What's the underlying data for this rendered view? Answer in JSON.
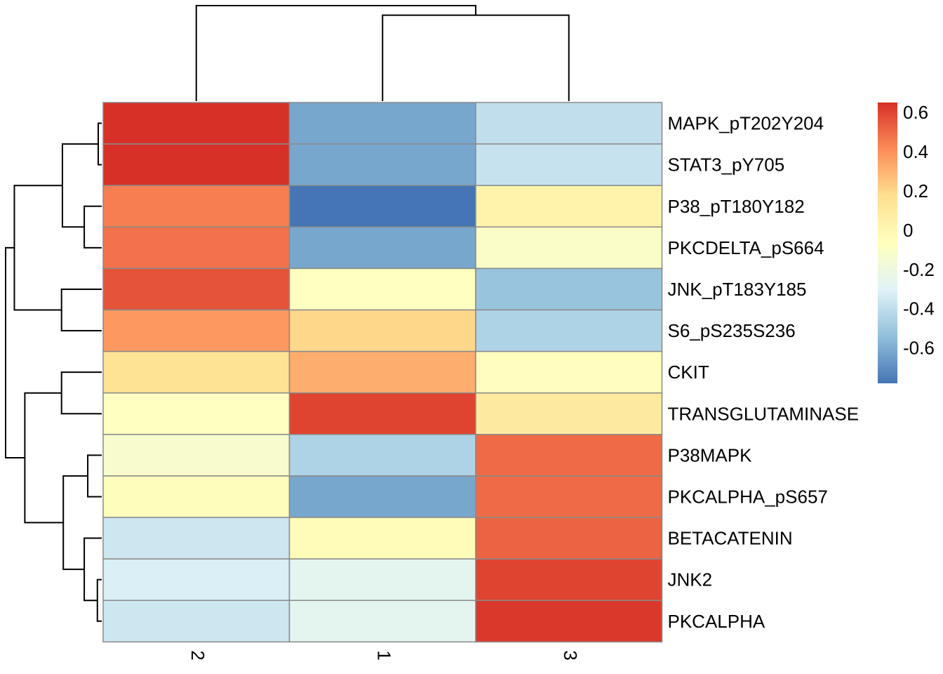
{
  "chart_data": {
    "type": "heatmap",
    "title": "",
    "columns": [
      "2",
      "1",
      "3"
    ],
    "rows": [
      "MAPK_pT202Y204",
      "STAT3_pY705",
      "P38_pT180Y182",
      "PKCDELTA_pS664",
      "JNK_pT183Y185",
      "S6_pS235S236",
      "CKIT",
      "TRANSGLUTAMINASE",
      "P38MAPK",
      "PKCALPHA_pS657",
      "BETACATENIN",
      "JNK2",
      "PKCALPHA"
    ],
    "values": [
      [
        0.65,
        -0.62,
        -0.4
      ],
      [
        0.65,
        -0.62,
        -0.38
      ],
      [
        0.45,
        -0.78,
        0.03
      ],
      [
        0.48,
        -0.62,
        -0.1
      ],
      [
        0.56,
        -0.07,
        -0.52
      ],
      [
        0.38,
        0.2,
        -0.45
      ],
      [
        0.15,
        0.32,
        -0.06
      ],
      [
        -0.07,
        0.6,
        0.1
      ],
      [
        -0.12,
        -0.45,
        0.5
      ],
      [
        -0.05,
        -0.62,
        0.5
      ],
      [
        -0.36,
        -0.04,
        0.52
      ],
      [
        -0.32,
        -0.27,
        0.6
      ],
      [
        -0.36,
        -0.27,
        0.63
      ]
    ],
    "color_scale": {
      "min": -0.78,
      "max": 0.65,
      "colors": [
        "#4575B4",
        "#91BFDB",
        "#E0F3F8",
        "#FFFFBF",
        "#FEE090",
        "#FC8D59",
        "#D73027"
      ],
      "ticks": [
        0.6,
        0.4,
        0.2,
        0,
        -0.2,
        -0.4,
        -0.6
      ],
      "tick_labels": [
        "0.6",
        "0.4",
        "0.2",
        "0",
        "-0.2",
        "-0.4",
        "-0.6"
      ]
    },
    "legend": "right",
    "col_dendrogram": {
      "merges": [
        [
          1,
          2,
          0.9
        ],
        [
          0,
          "m0",
          1.0
        ]
      ]
    },
    "row_dendrogram": {
      "merges": [
        [
          0,
          1,
          0.04
        ],
        [
          2,
          3,
          0.2
        ],
        [
          "m0",
          "m1",
          0.45
        ],
        [
          4,
          5,
          0.46
        ],
        [
          "m2",
          "m3",
          1.0
        ],
        [
          6,
          7,
          0.46
        ],
        [
          8,
          9,
          0.16
        ],
        [
          11,
          12,
          0.05
        ],
        [
          10,
          "m7",
          0.2
        ],
        [
          "m6",
          "m8",
          0.44
        ],
        [
          "m5",
          "m9",
          0.88
        ],
        [
          "m4",
          "m10",
          1.1
        ]
      ]
    }
  }
}
